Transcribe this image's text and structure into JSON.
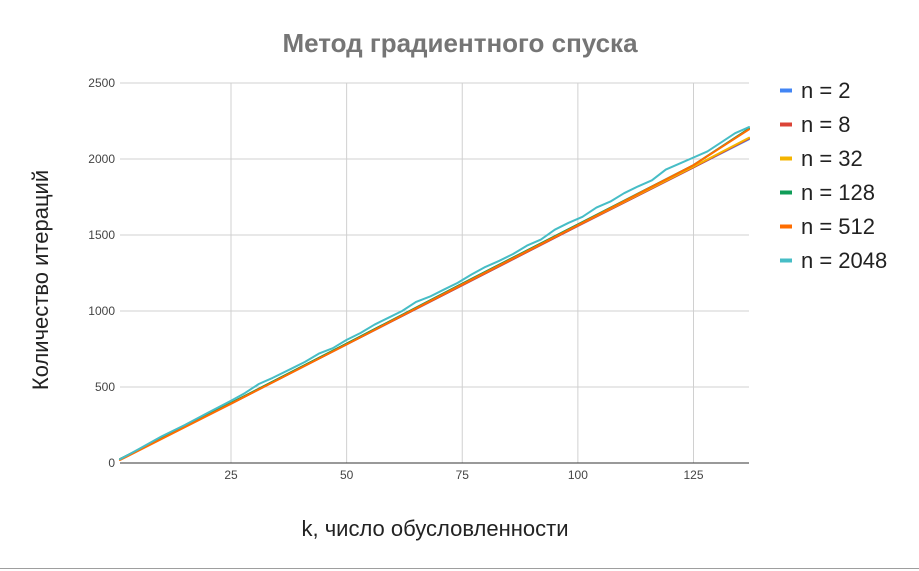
{
  "chart_data": {
    "type": "line",
    "title": "Метод градиентного спуска",
    "xlabel": "k, число обусловленности",
    "ylabel": "Количество итераций",
    "xlim": [
      1,
      137
    ],
    "ylim": [
      0,
      2500
    ],
    "xticks": [
      25,
      50,
      75,
      100,
      125
    ],
    "yticks": [
      0,
      500,
      1000,
      1500,
      2000,
      2500
    ],
    "grid": true,
    "legend_position": "right",
    "series": [
      {
        "name": "n = 2",
        "color": "#4285f4",
        "x": [
          1,
          25,
          50,
          75,
          100,
          125,
          137
        ],
        "y": [
          25,
          395,
          780,
          1170,
          1560,
          1945,
          2130
        ]
      },
      {
        "name": "n = 8",
        "color": "#db4437",
        "x": [
          1,
          25,
          50,
          75,
          100,
          125,
          137
        ],
        "y": [
          25,
          390,
          780,
          1170,
          1560,
          1945,
          2135
        ]
      },
      {
        "name": "n = 32",
        "color": "#f4b400",
        "x": [
          1,
          25,
          50,
          75,
          100,
          125,
          137
        ],
        "y": [
          25,
          395,
          785,
          1175,
          1565,
          1950,
          2140
        ]
      },
      {
        "name": "n = 128",
        "color": "#0f9d58",
        "x": [
          1,
          25,
          50,
          75,
          100,
          125,
          137
        ],
        "y": [
          25,
          395,
          785,
          1180,
          1570,
          1960,
          2200
        ]
      },
      {
        "name": "n = 512",
        "color": "#ff6d00",
        "x": [
          1,
          25,
          50,
          75,
          100,
          125,
          137
        ],
        "y": [
          20,
          390,
          780,
          1175,
          1565,
          1960,
          2195
        ]
      },
      {
        "name": "n = 2048",
        "color": "#46bdc6",
        "x": [
          1,
          5,
          10,
          15,
          20,
          25,
          28,
          31,
          34,
          38,
          41,
          44,
          47,
          50,
          53,
          56,
          59,
          62,
          65,
          68,
          71,
          74,
          77,
          80,
          83,
          86,
          89,
          92,
          95,
          98,
          101,
          104,
          107,
          110,
          113,
          116,
          119,
          122,
          125,
          128,
          131,
          134,
          137
        ],
        "y": [
          25,
          90,
          175,
          250,
          330,
          410,
          460,
          520,
          560,
          620,
          665,
          720,
          755,
          810,
          855,
          910,
          955,
          1000,
          1060,
          1095,
          1140,
          1185,
          1240,
          1290,
          1330,
          1375,
          1430,
          1470,
          1535,
          1580,
          1620,
          1680,
          1720,
          1775,
          1820,
          1860,
          1930,
          1970,
          2010,
          2050,
          2110,
          2170,
          2210
        ]
      }
    ]
  }
}
